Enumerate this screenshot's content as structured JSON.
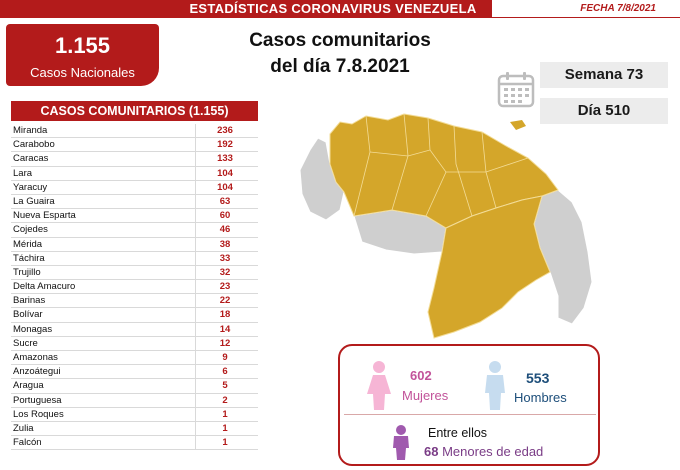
{
  "header": {
    "title": "ESTADÍSTICAS CORONAVIRUS VENEZUELA",
    "date": "FECHA 7/8/2021"
  },
  "total": {
    "value": "1.155",
    "label": "Casos Nacionales"
  },
  "headline": {
    "line1": "Casos comunitarios",
    "line2": "del día 7.8.2021"
  },
  "calendar": {
    "icon": "calendar-icon",
    "week": "Semana 73",
    "day": "Día 510"
  },
  "table": {
    "header": "CASOS COMUNITARIOS (1.155)",
    "rows": [
      {
        "state": "Miranda",
        "cases": "236"
      },
      {
        "state": "Carabobo",
        "cases": "192"
      },
      {
        "state": "Caracas",
        "cases": "133"
      },
      {
        "state": "Lara",
        "cases": "104"
      },
      {
        "state": "Yaracuy",
        "cases": "104"
      },
      {
        "state": "La Guaira",
        "cases": "63"
      },
      {
        "state": "Nueva Esparta",
        "cases": "60"
      },
      {
        "state": "Cojedes",
        "cases": "46"
      },
      {
        "state": "Mérida",
        "cases": "38"
      },
      {
        "state": "Táchira",
        "cases": "33"
      },
      {
        "state": "Trujillo",
        "cases": "32"
      },
      {
        "state": "Delta Amacuro",
        "cases": "23"
      },
      {
        "state": "Barinas",
        "cases": "22"
      },
      {
        "state": "Bolívar",
        "cases": "18"
      },
      {
        "state": "Monagas",
        "cases": "14"
      },
      {
        "state": "Sucre",
        "cases": "12"
      },
      {
        "state": "Amazonas",
        "cases": "9"
      },
      {
        "state": "Anzoátegui",
        "cases": "6"
      },
      {
        "state": "Aragua",
        "cases": "5"
      },
      {
        "state": "Portuguesa",
        "cases": "2"
      },
      {
        "state": "Los Roques",
        "cases": "1"
      },
      {
        "state": "Zulia",
        "cases": "1"
      },
      {
        "state": "Falcón",
        "cases": "1"
      }
    ]
  },
  "map": {
    "affected_color": "#d4a62a",
    "unaffected_color": "#cfcfcf"
  },
  "gender": {
    "women_count": "602",
    "women_label": "Mujeres",
    "women_color": "#c2539a",
    "men_count": "553",
    "men_label": "Hombres",
    "men_color": "#1d4e7a",
    "minors_intro": "Entre ellos",
    "minors_count": "68",
    "minors_label": "Menores de edad"
  },
  "colors": {
    "accent": "#b31b1b"
  }
}
